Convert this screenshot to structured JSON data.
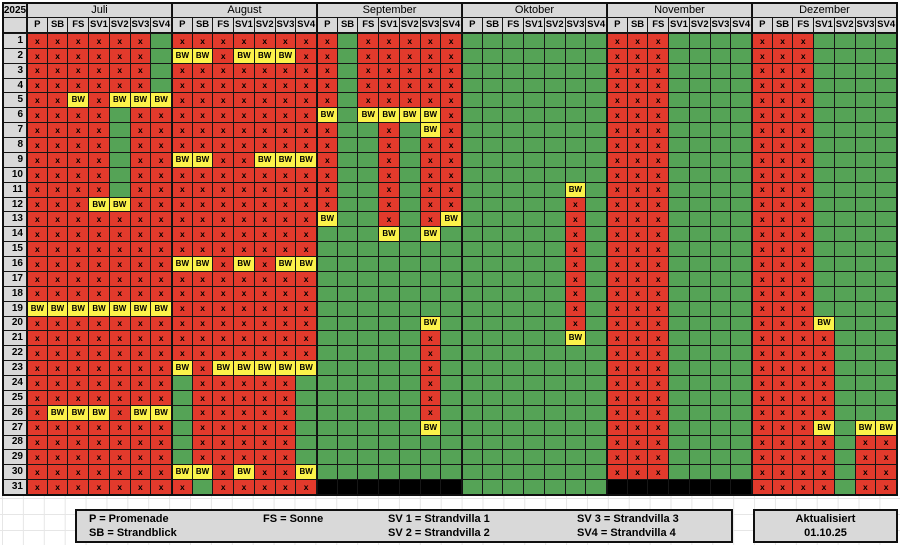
{
  "year": "2025",
  "column_headers": [
    "P",
    "SB",
    "FS",
    "SV1",
    "SV2",
    "SV3",
    "SV4"
  ],
  "day_labels": [
    "1",
    "2",
    "3",
    "4",
    "5",
    "6",
    "7",
    "8",
    "9",
    "10",
    "11",
    "12",
    "13",
    "14",
    "15",
    "16",
    "17",
    "18",
    "19",
    "20",
    "21",
    "22",
    "23",
    "24",
    "25",
    "26",
    "27",
    "28",
    "29",
    "30",
    "31"
  ],
  "cell_labels": {
    "booked": "x",
    "option": "BW"
  },
  "months": [
    {
      "name": "Juli",
      "days": [
        "xxxxxx-",
        "xxxxxx-",
        "xxxxxx-",
        "xxxxxx-",
        "xxBxBBB",
        "xxxx-xx",
        "xxxx-xx",
        "xxxx-xx",
        "xxxx-xx",
        "xxxx-xx",
        "xxxx-xx",
        "xxxBBxx",
        "xxxxxxx",
        "xxxxxxx",
        "xxxxxxx",
        "xxxxxxx",
        "xxxxxxx",
        "xxxxxxx",
        "BBBBBBB",
        "xxxxxxx",
        "xxxxxxx",
        "xxxxxxx",
        "xxxxxxx",
        "xxxxxxx",
        "xxxxxxx",
        "xBBBxBB",
        "xxxxxxx",
        "xxxxxxx",
        "xxxxxxx",
        "xxxxxxx",
        "xxxxxxx"
      ]
    },
    {
      "name": "August",
      "days": [
        "xxxxxxx",
        "BBxBBBx",
        "xxxxxxx",
        "xxxxxxx",
        "xxxxxxx",
        "xxxxxxx",
        "xxxxxxx",
        "xxxxxxx",
        "BBxxBBB",
        "xxxxxxx",
        "xxxxxxx",
        "xxxxxxx",
        "xxxxxxx",
        "xxxxxxx",
        "xxxxxxx",
        "BBxBxBB",
        "xxxxxxx",
        "xxxxxxx",
        "xxxxxxx",
        "xxxxxxx",
        "xxxxxxx",
        "xxxxxxx",
        "BxBBBBB",
        "-xxxxx-",
        "-xxxxx-",
        "-xxxxx-",
        "-xxxxx-",
        "-xxxxx-",
        "-xxxxx-",
        "BBxBxxB",
        "x-xxxxx"
      ]
    },
    {
      "name": "September",
      "days": [
        "x-xxxxx",
        "x-xxxxx",
        "x-xxxxx",
        "x-xxxxx",
        "x-xxxxx",
        "B-BBBBx",
        "x--x-Bx",
        "x--x-xx",
        "x--x-xx",
        "x--x-xx",
        "x--x-xx",
        "x--x-xx",
        "B--x-xB",
        "---B-B-",
        "-------",
        "-------",
        "-------",
        "-------",
        "-------",
        "-----B-",
        "-----x-",
        "-----x-",
        "-----x-",
        "-----x-",
        "-----x-",
        "-----x-",
        "-----B-",
        "-------",
        "-------",
        "-------",
        "KKKKKKK"
      ]
    },
    {
      "name": "Oktober",
      "days": [
        "-------",
        "-------",
        "-------",
        "-------",
        "-------",
        "-------",
        "-------",
        "-------",
        "-------",
        "-------",
        "-----B-",
        "-----x-",
        "-----x-",
        "-----x-",
        "-----x-",
        "-----x-",
        "-----x-",
        "-----x-",
        "-----x-",
        "-----x-",
        "-----B-",
        "-------",
        "-------",
        "-------",
        "-------",
        "-------",
        "-------",
        "-------",
        "-------",
        "-------",
        "-------"
      ]
    },
    {
      "name": "November",
      "days": [
        "xxx----",
        "xxx----",
        "xxx----",
        "xxx----",
        "xxx----",
        "xxx----",
        "xxx----",
        "xxx----",
        "xxx----",
        "xxx----",
        "xxx----",
        "xxx----",
        "xxx----",
        "xxx----",
        "xxx----",
        "xxx----",
        "xxx----",
        "xxx----",
        "xxx----",
        "xxx----",
        "xxx----",
        "xxx----",
        "xxx----",
        "xxx----",
        "xxx----",
        "xxx----",
        "xxx----",
        "xxx----",
        "xxx----",
        "xxx----",
        "KKKKKKK"
      ]
    },
    {
      "name": "Dezember",
      "days": [
        "xxx----",
        "xxx----",
        "xxx----",
        "xxx----",
        "xxx----",
        "xxx----",
        "xxx----",
        "xxx----",
        "xxx----",
        "xxx----",
        "xxx----",
        "xxx----",
        "xxx----",
        "xxx----",
        "xxx----",
        "xxx----",
        "xxx----",
        "xxx----",
        "xxx----",
        "xxxB---",
        "xxxx---",
        "xxxx---",
        "xxxx---",
        "xxxx---",
        "xxxx---",
        "xxxx---",
        "xxxB-BB",
        "xxxx-xx",
        "xxxx-xx",
        "xxxx-xx",
        "xxxx-xx"
      ]
    }
  ],
  "legend": {
    "p": "P = Promenade",
    "sb": "SB = Strandblick",
    "fs": "FS = Sonne",
    "sv1": "SV 1 = Strandvilla 1",
    "sv2": "SV 2 = Strandvilla 2",
    "sv3": "SV 3 = Strandvilla 3",
    "sv4": "SV4 = Strandvilla 4"
  },
  "updated": {
    "label": "Aktualisiert",
    "date": "01.10.25"
  },
  "colors": {
    "booked": "#e23a2c",
    "free": "#55a356",
    "option": "#fcf24a",
    "header": "#d9d9d9",
    "none": "#000000"
  }
}
